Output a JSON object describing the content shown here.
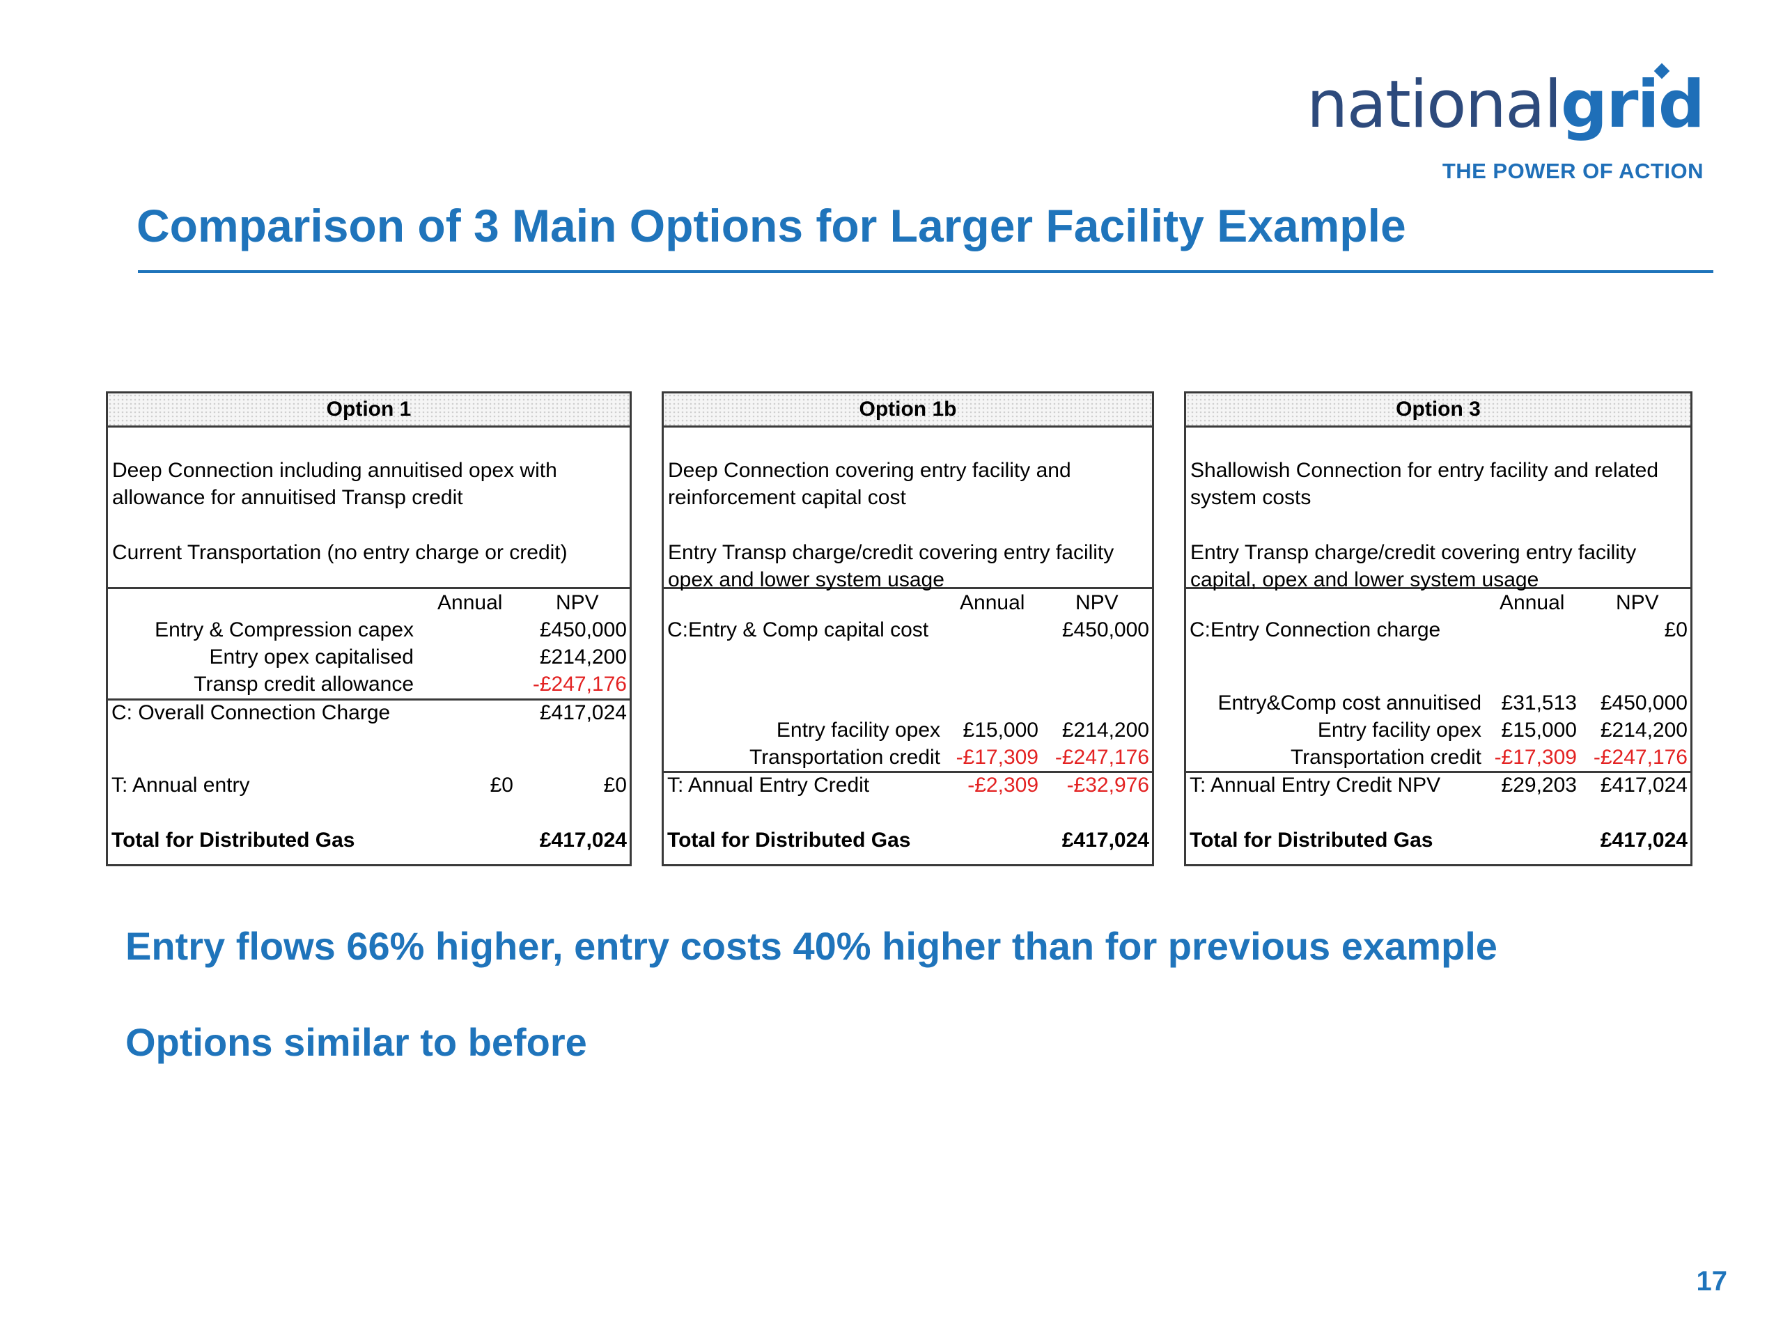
{
  "logo": {
    "word_light": "national",
    "word_bold": "grid",
    "tagline": "THE POWER OF ACTION"
  },
  "title": "Comparison of 3 Main Options for Larger Facility Example",
  "option1": {
    "header": "Option 1",
    "desc1": "Deep Connection including annuitised opex with allowance for annuitised Transp credit",
    "desc2": "Current Transportation (no entry charge or credit)",
    "col_annual": "Annual",
    "col_npv": "NPV",
    "r1_label": "Entry & Compression capex",
    "r1_npv": "£450,000",
    "r2_label": "Entry opex capitalised",
    "r2_npv": "£214,200",
    "r3_label": "Transp credit allowance",
    "r3_npv": "-£247,176",
    "r4_label": "C: Overall Connection Charge",
    "r4_npv": "£417,024",
    "r5_label": "T: Annual entry",
    "r5_annual": "£0",
    "r5_npv": "£0",
    "total_label": "Total for Distributed Gas",
    "total_npv": "£417,024"
  },
  "option1b": {
    "header": "Option 1b",
    "desc1": "Deep Connection covering entry facility and reinforcement capital cost",
    "desc2": "Entry Transp charge/credit covering entry facility opex and lower system usage",
    "col_annual": "Annual",
    "col_npv": "NPV",
    "r1_label": "C:Entry & Comp capital cost",
    "r1_npv": "£450,000",
    "r2_label": "Entry facility opex",
    "r2_annual": "£15,000",
    "r2_npv": "£214,200",
    "r3_label": "Transportation credit",
    "r3_annual": "-£17,309",
    "r3_npv": "-£247,176",
    "r4_label": "T: Annual Entry Credit",
    "r4_annual": "-£2,309",
    "r4_npv": "-£32,976",
    "total_label": "Total for Distributed Gas",
    "total_npv": "£417,024"
  },
  "option3": {
    "header": "Option 3",
    "desc1": "Shallowish Connection for entry facility and related system costs",
    "desc2": "Entry Transp charge/credit covering entry facility capital, opex and lower system usage",
    "col_annual": "Annual",
    "col_npv": "NPV",
    "r1_label": "C:Entry Connection charge",
    "r1_npv": "£0",
    "r2_label": "Entry&Comp cost annuitised",
    "r2_annual": "£31,513",
    "r2_npv": "£450,000",
    "r3_label": "Entry facility opex",
    "r3_annual": "£15,000",
    "r3_npv": "£214,200",
    "r4_label": "Transportation credit",
    "r4_annual": "-£17,309",
    "r4_npv": "-£247,176",
    "r5_label": "T: Annual Entry Credit NPV",
    "r5_annual": "£29,203",
    "r5_npv": "£417,024",
    "total_label": "Total for Distributed Gas",
    "total_npv": "£417,024"
  },
  "bullets": [
    "Entry flows 66% higher, entry costs 40% higher than for previous example",
    "Options similar to before"
  ],
  "page_number": "17"
}
